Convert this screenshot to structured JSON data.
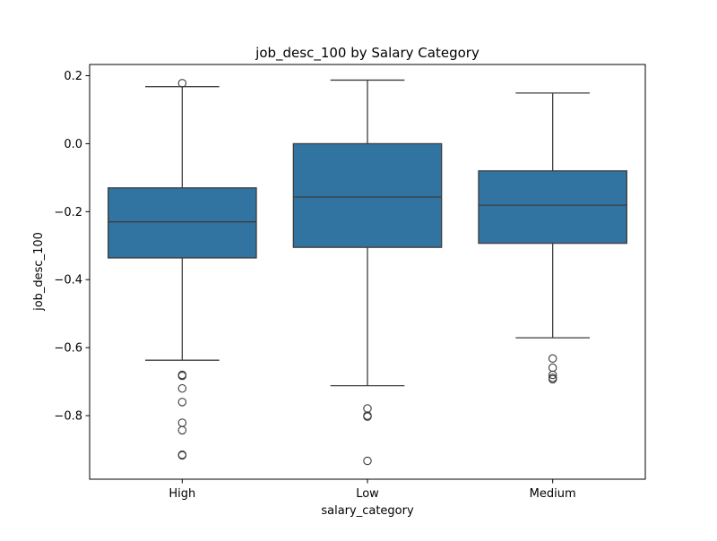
{
  "chart_data": {
    "type": "box",
    "title": "job_desc_100 by Salary Category",
    "xlabel": "salary_category",
    "ylabel": "job_desc_100",
    "categories": [
      "High",
      "Low",
      "Medium"
    ],
    "ylim": [
      -0.987,
      0.233
    ],
    "yticks": [
      0.2,
      0.0,
      -0.2,
      -0.4,
      -0.6,
      -0.8
    ],
    "ytick_labels": [
      "0.2",
      "0.0",
      "−0.2",
      "−0.4",
      "−0.6",
      "−0.8"
    ],
    "grid": false,
    "legend": "none",
    "box_color": "#3274a1",
    "line_color": "#3d3d3d",
    "boxes": [
      {
        "category": "High",
        "whisker_low": -0.637,
        "q1": -0.336,
        "median": -0.23,
        "q3": -0.13,
        "whisker_high": 0.168,
        "outliers": [
          0.178,
          -0.68,
          -0.683,
          -0.72,
          -0.76,
          -0.821,
          -0.843,
          -0.915,
          -0.917
        ]
      },
      {
        "category": "Low",
        "whisker_low": -0.712,
        "q1": -0.305,
        "median": -0.157,
        "q3": 0.0,
        "whisker_high": 0.187,
        "outliers": [
          -0.779,
          -0.8,
          -0.803,
          -0.933
        ]
      },
      {
        "category": "Medium",
        "whisker_low": -0.571,
        "q1": -0.293,
        "median": -0.181,
        "q3": -0.08,
        "whisker_high": 0.149,
        "outliers": [
          -0.632,
          -0.659,
          -0.68,
          -0.689,
          -0.693
        ]
      }
    ]
  }
}
